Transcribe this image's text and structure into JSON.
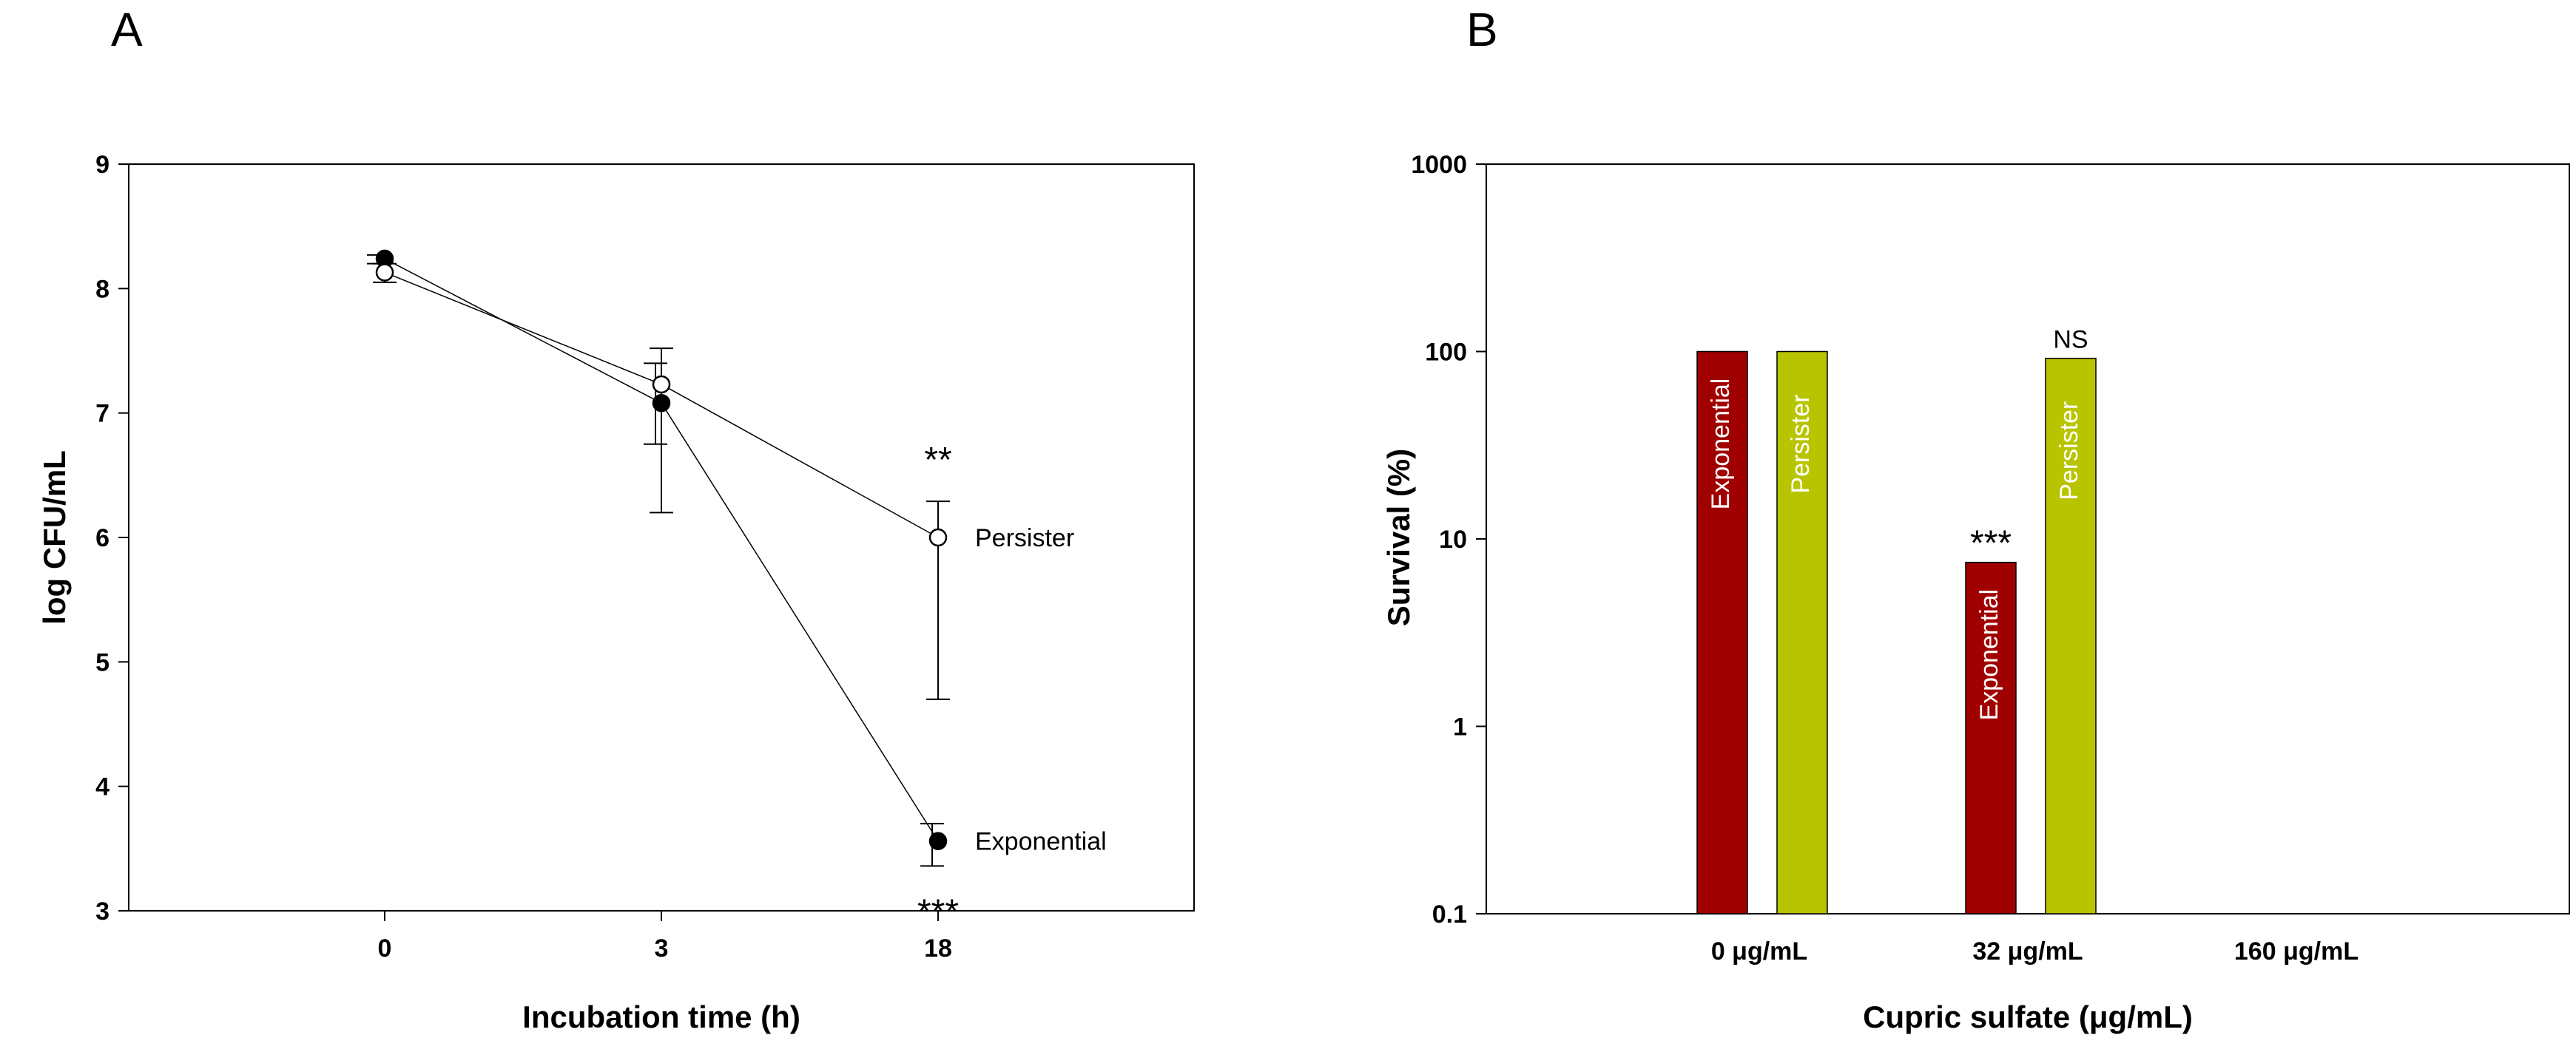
{
  "chart_data": [
    {
      "panel": "A",
      "type": "line",
      "xlabel": "Incubation time (h)",
      "ylabel": "log CFU/mL",
      "x_categories": [
        "0",
        "3",
        "18"
      ],
      "ylim": [
        3,
        9
      ],
      "yticks": [
        3,
        4,
        5,
        6,
        7,
        8,
        9
      ],
      "series": [
        {
          "name": "Persister",
          "marker": "open-circle",
          "values": [
            8.13,
            7.23,
            6.0
          ],
          "error_low": [
            8.05,
            6.2,
            4.7
          ],
          "error_high": [
            8.2,
            7.52,
            6.29
          ],
          "significance": [
            "",
            "",
            "**"
          ]
        },
        {
          "name": "Exponential",
          "marker": "filled-circle",
          "values": [
            8.24,
            7.08,
            3.56
          ],
          "error_low": [
            8.2,
            6.75,
            3.36
          ],
          "error_high": [
            8.27,
            7.4,
            3.7
          ],
          "significance": [
            "",
            "",
            "***"
          ]
        }
      ]
    },
    {
      "panel": "B",
      "type": "bar",
      "xlabel": "Cupric sulfate (μg/mL)",
      "ylabel": "Survival (%)",
      "yscale": "log",
      "ylim": [
        0.1,
        1000
      ],
      "yticks": [
        0.1,
        1,
        10,
        100,
        1000
      ],
      "ytick_labels": [
        "0.1",
        "1",
        "10",
        "100",
        "1000"
      ],
      "categories": [
        "0 μg/mL",
        "32 μg/mL",
        "160 μg/mL"
      ],
      "series": [
        {
          "name": "Exponential",
          "color": "#a00000",
          "values": [
            100,
            7.5,
            null
          ],
          "significance": [
            "",
            "***",
            ""
          ]
        },
        {
          "name": "Persister",
          "color": "#b8c400",
          "values": [
            100,
            92,
            null
          ],
          "significance": [
            "",
            "NS",
            ""
          ]
        }
      ]
    }
  ],
  "panels": {
    "a": "A",
    "b": "B"
  }
}
